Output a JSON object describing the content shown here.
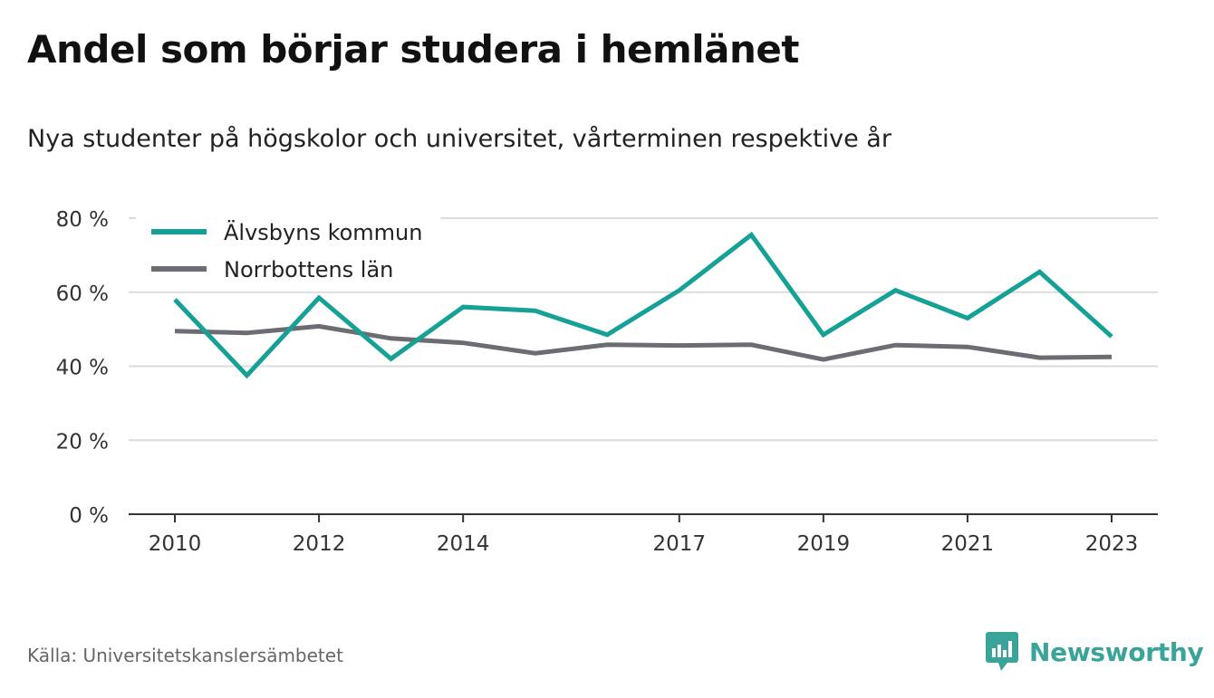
{
  "title": "Andel som börjar studera i hemlänet",
  "subtitle": "Nya studenter på högskolor och universitet, vårterminen respektive år",
  "source": "Källa: Universitetskanslersämbetet",
  "brand": "Newsworthy",
  "colors": {
    "accent": "#16a196",
    "secondary": "#6d6c72",
    "brand": "#3aa39a"
  },
  "chart_data": {
    "type": "line",
    "x": [
      2010,
      2011,
      2012,
      2013,
      2014,
      2015,
      2016,
      2017,
      2018,
      2019,
      2020,
      2021,
      2022,
      2023
    ],
    "x_tick_labels": [
      "2010",
      "2012",
      "2014",
      "2017",
      "2019",
      "2021",
      "2023"
    ],
    "y_tick_labels": [
      "0 %",
      "20 %",
      "40 %",
      "60 %",
      "80 %"
    ],
    "ylim": [
      0,
      80
    ],
    "grid": true,
    "legend_position": "top-left",
    "series": [
      {
        "name": "Älvsbyns kommun",
        "color": "#16a196",
        "values": [
          58,
          37.5,
          58.5,
          42,
          56,
          55,
          48.5,
          60.5,
          75.5,
          48.5,
          60.5,
          53,
          65.5,
          48
        ]
      },
      {
        "name": "Norrbottens län",
        "color": "#6d6c72",
        "values": [
          49.5,
          49,
          50.8,
          47.5,
          46.3,
          43.5,
          45.8,
          45.6,
          45.8,
          41.8,
          45.7,
          45.2,
          42.3,
          42.5
        ]
      }
    ]
  }
}
